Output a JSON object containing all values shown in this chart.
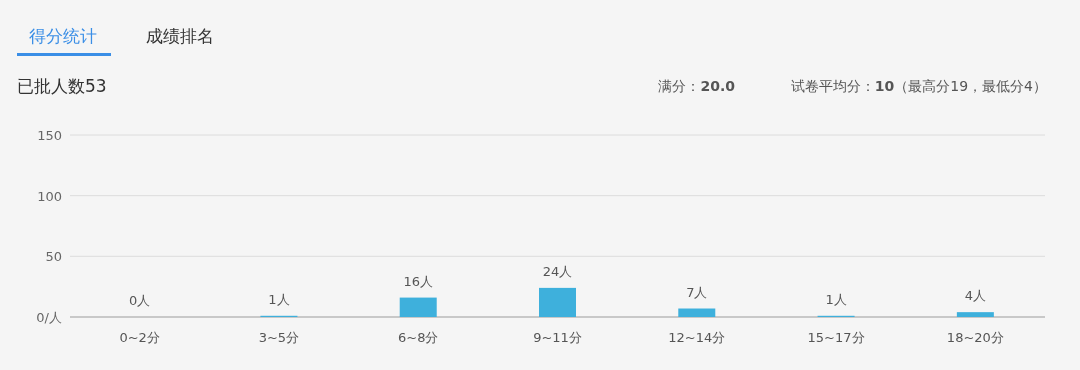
{
  "chart_data": {
    "type": "bar",
    "title": "已批人数53",
    "annotations": [
      "得分统计",
      "成绩排名",
      "满分：**20.0**",
      "试卷平均分：**10**（最高分19，最低分4）"
    ],
    "categories": [
      "0~2分",
      "3~5分",
      "6~8分",
      "9~11分",
      "12~14分",
      "15~17分",
      "18~20分"
    ],
    "values": [
      0,
      1,
      16,
      24,
      7,
      1,
      4
    ],
    "value_labels": [
      "0人",
      "1人",
      "16人",
      "24人",
      "7人",
      "1人",
      "4人"
    ],
    "color": "#3eb0dc",
    "ylim": [
      0,
      150
    ],
    "yticks": [
      {
        "value": 0,
        "label": "0/人"
      },
      50,
      100,
      150
    ],
    "grid": "y"
  }
}
